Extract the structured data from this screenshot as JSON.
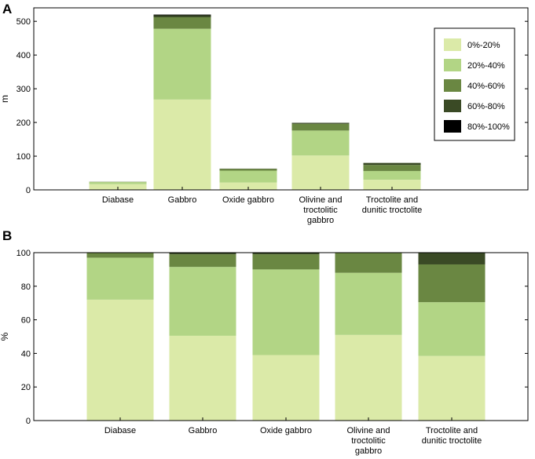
{
  "colors": {
    "0%-20%": "#dbeaa8",
    "20%-40%": "#b2d585",
    "40%-60%": "#6a8742",
    "60%-80%": "#3a4a25",
    "80%-100%": "#000000"
  },
  "legend": {
    "placement": "top-right",
    "entries": [
      "0%-20%",
      "20%-40%",
      "40%-60%",
      "60%-80%",
      "80%-100%"
    ]
  },
  "chart_data": [
    {
      "panel": "A",
      "type": "bar",
      "stacked": true,
      "ylabel": "m",
      "ylim": [
        0,
        540
      ],
      "yticks": [
        0,
        100,
        200,
        300,
        400,
        500
      ],
      "categories": [
        [
          "Diabase"
        ],
        [
          "Gabbro"
        ],
        [
          "Oxide gabbro"
        ],
        [
          "Olivine and",
          "troctolitic",
          "gabbro"
        ],
        [
          "Troctolite and",
          "dunitic troctolite"
        ]
      ],
      "series": [
        {
          "name": "0%-20%",
          "values": [
            17,
            268,
            22,
            102,
            30
          ]
        },
        {
          "name": "20%-40%",
          "values": [
            6,
            210,
            35,
            74,
            26
          ]
        },
        {
          "name": "40%-60%",
          "values": [
            1,
            34,
            5,
            20,
            18
          ]
        },
        {
          "name": "60%-80%",
          "values": [
            0,
            6,
            1,
            3,
            6
          ]
        },
        {
          "name": "80%-100%",
          "values": [
            0,
            2,
            0,
            0,
            0
          ]
        }
      ]
    },
    {
      "panel": "B",
      "type": "bar",
      "stacked": true,
      "ylabel": "%",
      "ylim": [
        0,
        100
      ],
      "yticks": [
        0,
        20,
        40,
        60,
        80,
        100
      ],
      "categories": [
        [
          "Diabase"
        ],
        [
          "Gabbro"
        ],
        [
          "Oxide gabbro"
        ],
        [
          "Olivine and",
          "troctolitic",
          "gabbro"
        ],
        [
          "Troctolite and",
          "dunitic troctolite"
        ]
      ],
      "series": [
        {
          "name": "0%-20%",
          "values": [
            72,
            50.5,
            39,
            51,
            38.5
          ]
        },
        {
          "name": "20%-40%",
          "values": [
            25,
            41,
            51,
            37,
            32
          ]
        },
        {
          "name": "40%-60%",
          "values": [
            3,
            7.5,
            9,
            12,
            22.5
          ]
        },
        {
          "name": "60%-80%",
          "values": [
            0,
            1,
            1,
            0,
            7
          ]
        },
        {
          "name": "80%-100%",
          "values": [
            0,
            0,
            0,
            0,
            0
          ]
        }
      ]
    }
  ]
}
